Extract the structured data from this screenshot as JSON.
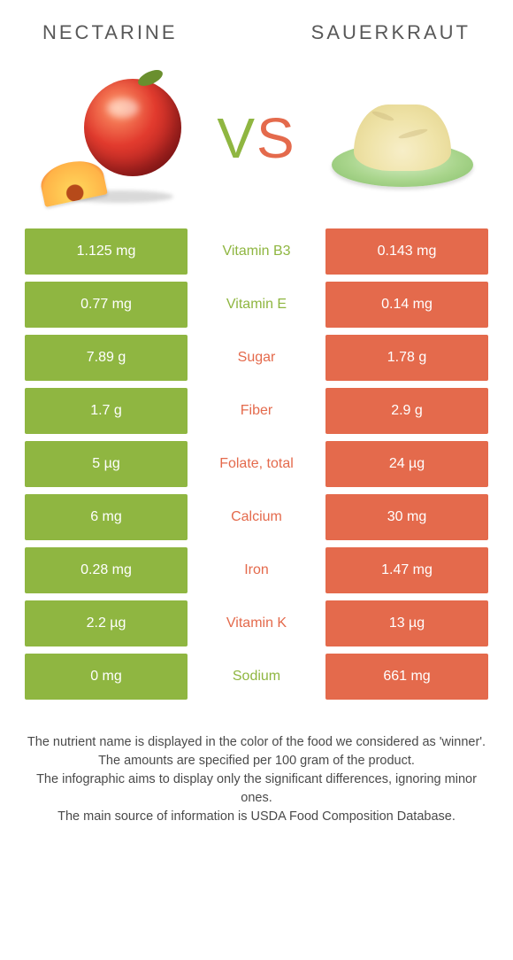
{
  "colors": {
    "left_bg": "#8fb641",
    "right_bg": "#e46a4c",
    "left_accent": "#8fb641",
    "right_accent": "#e46a4c",
    "text": "#4a4a4a",
    "cell_text": "#ffffff",
    "background": "#ffffff"
  },
  "typography": {
    "header_fontsize": 22,
    "header_letterspacing": 3,
    "vs_fontsize": 64,
    "cell_fontsize": 16,
    "footer_fontsize": 14.5
  },
  "header": {
    "left": "Nectarine",
    "right": "Sauerkraut"
  },
  "vs": {
    "v": "V",
    "s": "S"
  },
  "rows": [
    {
      "left": "1.125 mg",
      "label": "Vitamin B3",
      "right": "0.143 mg",
      "winner": "left"
    },
    {
      "left": "0.77 mg",
      "label": "Vitamin E",
      "right": "0.14 mg",
      "winner": "left"
    },
    {
      "left": "7.89 g",
      "label": "Sugar",
      "right": "1.78 g",
      "winner": "right"
    },
    {
      "left": "1.7 g",
      "label": "Fiber",
      "right": "2.9 g",
      "winner": "right"
    },
    {
      "left": "5 µg",
      "label": "Folate, total",
      "right": "24 µg",
      "winner": "right"
    },
    {
      "left": "6 mg",
      "label": "Calcium",
      "right": "30 mg",
      "winner": "right"
    },
    {
      "left": "0.28 mg",
      "label": "Iron",
      "right": "1.47 mg",
      "winner": "right"
    },
    {
      "left": "2.2 µg",
      "label": "Vitamin K",
      "right": "13 µg",
      "winner": "right"
    },
    {
      "left": "0 mg",
      "label": "Sodium",
      "right": "661 mg",
      "winner": "left"
    }
  ],
  "footer": {
    "l1": "The nutrient name is displayed in the color of the food we considered as 'winner'.",
    "l2": "The amounts are specified per 100 gram of the product.",
    "l3": "The infographic aims to display only the significant differences, ignoring minor ones.",
    "l4": "The main source of information is USDA Food Composition Database."
  }
}
